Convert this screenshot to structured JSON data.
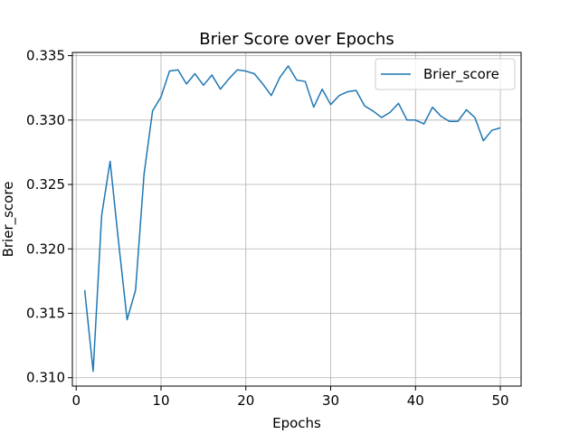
{
  "chart_data": {
    "type": "line",
    "title": "Brier Score over Epochs",
    "xlabel": "Epochs",
    "ylabel": "Brier_score",
    "xlim": [
      -0.45,
      52.45
    ],
    "ylim": [
      0.30935,
      0.33525
    ],
    "xticks": [
      0,
      10,
      20,
      30,
      40,
      50
    ],
    "yticks": [
      0.31,
      0.315,
      0.32,
      0.325,
      0.33,
      0.335
    ],
    "ytick_labels": [
      "0.310",
      "0.315",
      "0.320",
      "0.325",
      "0.330",
      "0.335"
    ],
    "grid": true,
    "legend_position": "top-right",
    "series": [
      {
        "name": "Brier_score",
        "color": "#1f77b4",
        "x": [
          1,
          2,
          3,
          4,
          5,
          6,
          7,
          8,
          9,
          10,
          11,
          12,
          13,
          14,
          15,
          16,
          17,
          18,
          19,
          20,
          21,
          22,
          23,
          24,
          25,
          26,
          27,
          28,
          29,
          30,
          31,
          32,
          33,
          34,
          35,
          36,
          37,
          38,
          39,
          40,
          41,
          42,
          43,
          44,
          45,
          46,
          47,
          48,
          49,
          50
        ],
        "y": [
          0.3168,
          0.3105,
          0.3226,
          0.3268,
          0.3205,
          0.3145,
          0.3168,
          0.3258,
          0.3307,
          0.3318,
          0.3338,
          0.3339,
          0.3328,
          0.3336,
          0.3327,
          0.3335,
          0.3324,
          0.3332,
          0.3339,
          0.3338,
          0.3336,
          0.3328,
          0.3319,
          0.3333,
          0.3342,
          0.3331,
          0.333,
          0.331,
          0.3324,
          0.3312,
          0.3319,
          0.3322,
          0.3323,
          0.3311,
          0.3307,
          0.3302,
          0.3306,
          0.3313,
          0.33,
          0.33,
          0.3297,
          0.331,
          0.3303,
          0.3299,
          0.3299,
          0.3308,
          0.3302,
          0.3284,
          0.3292,
          0.3294
        ]
      }
    ]
  }
}
